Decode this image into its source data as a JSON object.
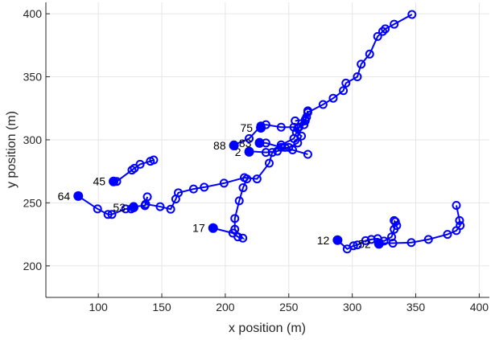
{
  "chart_data": {
    "type": "line",
    "title": "",
    "xlabel": "x position (m)",
    "ylabel": "y position (m)",
    "xlim": [
      58.7,
      408
    ],
    "ylim": [
      175,
      409
    ],
    "xticks": [
      100,
      150,
      200,
      250,
      300,
      350,
      400
    ],
    "yticks": [
      200,
      250,
      300,
      350,
      400
    ],
    "grid": true,
    "color": "#0000ff",
    "tracks": [
      {
        "points": [
          [
            84.2,
            255.4
          ],
          [
            99.4,
            245.2
          ],
          [
            107.6,
            240.8
          ],
          [
            110.7,
            240.8
          ],
          [
            121.5,
            245.2
          ],
          [
            125.9,
            245.2
          ],
          [
            127.8,
            247.1
          ],
          [
            136.7,
            247.8
          ],
          [
            138.6,
            254.8
          ],
          [
            137.3,
            249
          ],
          [
            148.7,
            247
          ],
          [
            157,
            245
          ],
          [
            161,
            253
          ],
          [
            163,
            258
          ],
          [
            175,
            261
          ],
          [
            183.4,
            262.4
          ],
          [
            199,
            265.6
          ],
          [
            215,
            270
          ],
          [
            225,
            269
          ],
          [
            234.6,
            281.5
          ],
          [
            237,
            290
          ],
          [
            244,
            296
          ],
          [
            254,
            301
          ],
          [
            258,
            310
          ],
          [
            263,
            315
          ],
          [
            265,
            321.7
          ],
          [
            277,
            328
          ],
          [
            285,
            333
          ],
          [
            293,
            339
          ],
          [
            295,
            345
          ],
          [
            304,
            350
          ],
          [
            307,
            360
          ],
          [
            313.7,
            368
          ],
          [
            320,
            382
          ],
          [
            324,
            386
          ],
          [
            326,
            388
          ],
          [
            333,
            391.7
          ],
          [
            347,
            399.4
          ]
        ]
      },
      {
        "points": [
          [
            112,
            267
          ],
          [
            114.5,
            267
          ],
          [
            126.5,
            276
          ],
          [
            128.4,
            277.4
          ],
          [
            132.9,
            280.6
          ],
          [
            141,
            283
          ],
          [
            143.6,
            284
          ]
        ]
      },
      {
        "points": [
          [
            190.4,
            230
          ],
          [
            206,
            226
          ],
          [
            210,
            223
          ],
          [
            213.8,
            222
          ],
          [
            207.5,
            229
          ],
          [
            207.5,
            237.6
          ],
          [
            211,
            251.6
          ],
          [
            214,
            262
          ],
          [
            217,
            269
          ]
        ]
      },
      {
        "points": [
          [
            206.8,
            296
          ],
          [
            218.8,
            301
          ],
          [
            228,
            311
          ],
          [
            232,
            312
          ],
          [
            244,
            310
          ],
          [
            254,
            310
          ],
          [
            257,
            309
          ],
          [
            262,
            312
          ],
          [
            264,
            318
          ],
          [
            265,
            323
          ],
          [
            263,
            316
          ],
          [
            255,
            315
          ]
        ]
      },
      {
        "points": [
          [
            227,
            298
          ],
          [
            232,
            297.5
          ],
          [
            244,
            294
          ],
          [
            247,
            294
          ],
          [
            253,
            292
          ],
          [
            265,
            288.5
          ]
        ]
      },
      {
        "points": [
          [
            218.8,
            291
          ],
          [
            232,
            290
          ],
          [
            241,
            291
          ],
          [
            250,
            294
          ],
          [
            257,
            297.5
          ],
          [
            260,
            303
          ],
          [
            256,
            306
          ]
        ]
      },
      {
        "points": [
          [
            288.4,
            220.4
          ],
          [
            296,
            213.4
          ],
          [
            301,
            216
          ],
          [
            304,
            216.6
          ],
          [
            310.5,
            220
          ],
          [
            315,
            221
          ],
          [
            320,
            221.6
          ],
          [
            325,
            219.7
          ],
          [
            331,
            223
          ],
          [
            333,
            229
          ],
          [
            334,
            235
          ],
          [
            335,
            232
          ],
          [
            333,
            236
          ]
        ]
      },
      {
        "points": [
          [
            321,
            218
          ],
          [
            332,
            218
          ],
          [
            346.5,
            218.5
          ],
          [
            360,
            221
          ],
          [
            375,
            225
          ],
          [
            382,
            228
          ],
          [
            385,
            232
          ],
          [
            384.5,
            236
          ],
          [
            382,
            248
          ]
        ]
      }
    ],
    "labeled_points": [
      {
        "label": "64",
        "x": 84.2,
        "y": 255.4
      },
      {
        "label": "53",
        "x": 127.8,
        "y": 246.4
      },
      {
        "label": "45",
        "x": 112,
        "y": 267
      },
      {
        "label": "17",
        "x": 190.4,
        "y": 230
      },
      {
        "label": "88",
        "x": 206.8,
        "y": 295.5
      },
      {
        "label": "2",
        "x": 218.8,
        "y": 290.5
      },
      {
        "label": "75",
        "x": 228,
        "y": 309.5
      },
      {
        "label": "83",
        "x": 227,
        "y": 297.5
      },
      {
        "label": "12",
        "x": 288.4,
        "y": 220.4
      },
      {
        "label": "52",
        "x": 321,
        "y": 217.5
      }
    ]
  }
}
